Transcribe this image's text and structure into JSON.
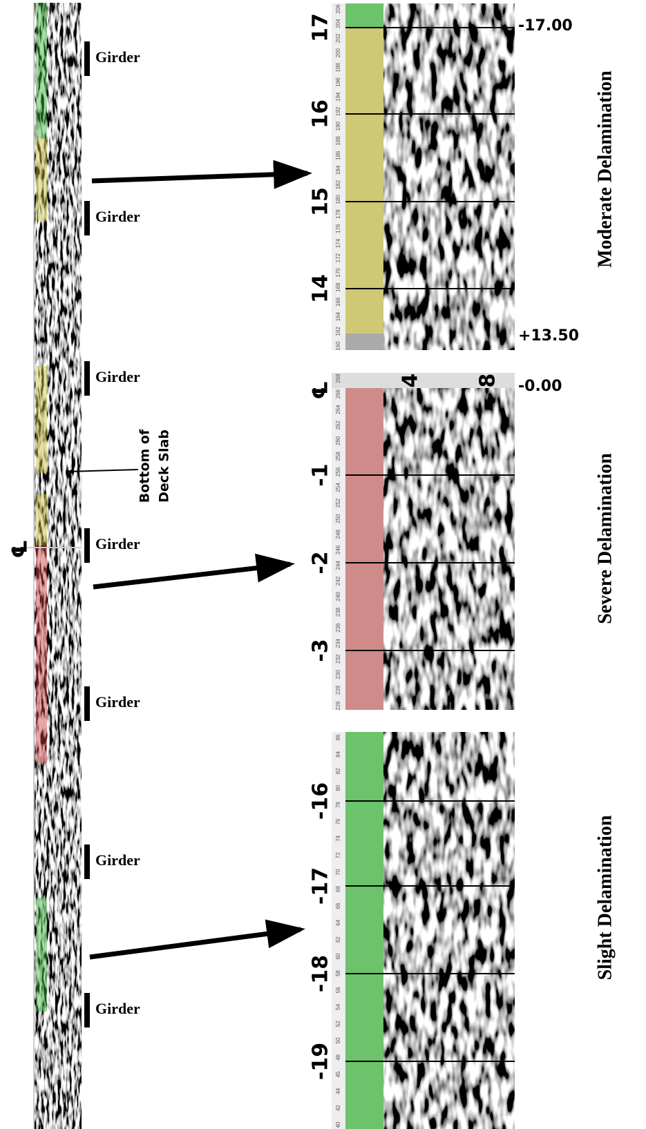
{
  "centerline": "℄",
  "girders": [
    "Girder",
    "Girder",
    "Girder",
    "Girder",
    "Girder",
    "Girder",
    "Girder"
  ],
  "annotation": [
    "Bottom of",
    "Deck Slab"
  ],
  "panels": [
    {
      "title": "Moderate Delamination",
      "station_labels": [
        "17",
        "16",
        "15",
        "14"
      ],
      "end_labels": [
        "-17.00",
        "+13.50"
      ],
      "scale_labels": [
        "206",
        "204",
        "202",
        "200",
        "198",
        "196",
        "194",
        "192",
        "190",
        "188",
        "186",
        "184",
        "182",
        "180",
        "178",
        "176",
        "174",
        "172",
        "170",
        "168",
        "166",
        "164",
        "162",
        "160"
      ]
    },
    {
      "title": "Severe Delamination",
      "centerline": "℄",
      "depth_labels": [
        "4",
        "8"
      ],
      "station_labels": [
        "-1",
        "-2",
        "-3"
      ],
      "end_labels": [
        "-0.00"
      ],
      "scale_labels": [
        "268",
        "266",
        "264",
        "262",
        "260",
        "258",
        "256",
        "254",
        "252",
        "250",
        "248",
        "246",
        "244",
        "242",
        "240",
        "238",
        "236",
        "234",
        "232",
        "230",
        "228",
        "226"
      ]
    },
    {
      "title": "Slight Delamination",
      "station_labels": [
        "-16",
        "-17",
        "-18",
        "-19"
      ],
      "scale_labels": [
        "86",
        "84",
        "82",
        "80",
        "78",
        "76",
        "74",
        "72",
        "70",
        "68",
        "66",
        "64",
        "62",
        "60",
        "58",
        "56",
        "54",
        "52",
        "50",
        "48",
        "45",
        "44",
        "42",
        "40"
      ]
    }
  ]
}
